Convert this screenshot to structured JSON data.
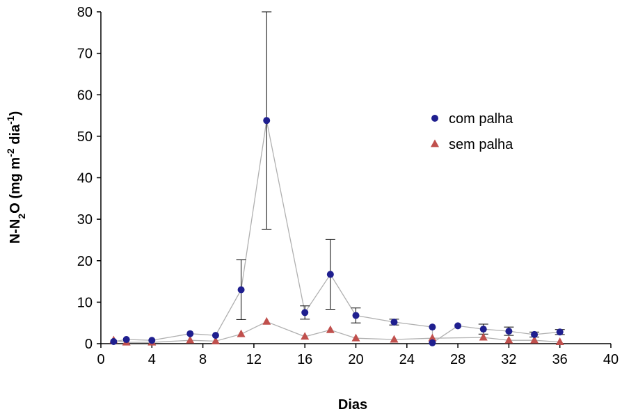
{
  "chart_data": {
    "type": "scatter",
    "xlabel": "Dias",
    "ylabel": {
      "parts": [
        {
          "text": "N-N",
          "shift": "normal"
        },
        {
          "text": "2",
          "shift": "sub"
        },
        {
          "text": "O (mg m",
          "shift": "normal"
        },
        {
          "text": "-2",
          "shift": "super"
        },
        {
          "text": " dia",
          "shift": "normal"
        },
        {
          "text": "-1",
          "shift": "super"
        },
        {
          "text": ")",
          "shift": "normal"
        }
      ]
    },
    "xlim": [
      0,
      40
    ],
    "ylim": [
      0,
      80
    ],
    "xticks": [
      0,
      4,
      8,
      12,
      16,
      20,
      24,
      28,
      32,
      36,
      40
    ],
    "yticks": [
      0,
      10,
      20,
      30,
      40,
      50,
      60,
      70,
      80
    ],
    "grid": false,
    "legend_position": "right",
    "series": [
      {
        "name": "com palha",
        "marker": "circle",
        "color": "#1f1f8f",
        "line_color": "#b0b0b0",
        "x": [
          1,
          2,
          4,
          7,
          9,
          11,
          13,
          16,
          18,
          20,
          23,
          26,
          26,
          28,
          30,
          32,
          34,
          36
        ],
        "y": [
          0.5,
          1.0,
          0.8,
          2.4,
          2.0,
          13.0,
          53.8,
          7.5,
          16.7,
          6.8,
          5.2,
          4.0,
          0.2,
          4.3,
          3.5,
          3.0,
          2.2,
          2.8
        ],
        "err": [
          0,
          0,
          0,
          0,
          0,
          7.2,
          26.2,
          1.6,
          8.4,
          1.8,
          0.7,
          0,
          0,
          0,
          1.2,
          1.0,
          0.6,
          0.6
        ]
      },
      {
        "name": "sem palha",
        "marker": "triangle",
        "color": "#c0504d",
        "line_color": "#b0b0b0",
        "x": [
          1,
          2,
          4,
          7,
          9,
          11,
          13,
          16,
          18,
          20,
          23,
          26,
          30,
          32,
          34,
          36
        ],
        "y": [
          0.8,
          0.3,
          0.3,
          0.8,
          0.6,
          2.3,
          5.3,
          1.7,
          3.3,
          1.3,
          1.0,
          1.3,
          1.5,
          0.8,
          0.8,
          0.4
        ],
        "err": [
          0,
          0,
          0,
          0,
          0,
          0,
          0,
          0,
          0,
          0,
          0,
          0,
          0,
          0,
          0,
          0
        ]
      }
    ]
  }
}
